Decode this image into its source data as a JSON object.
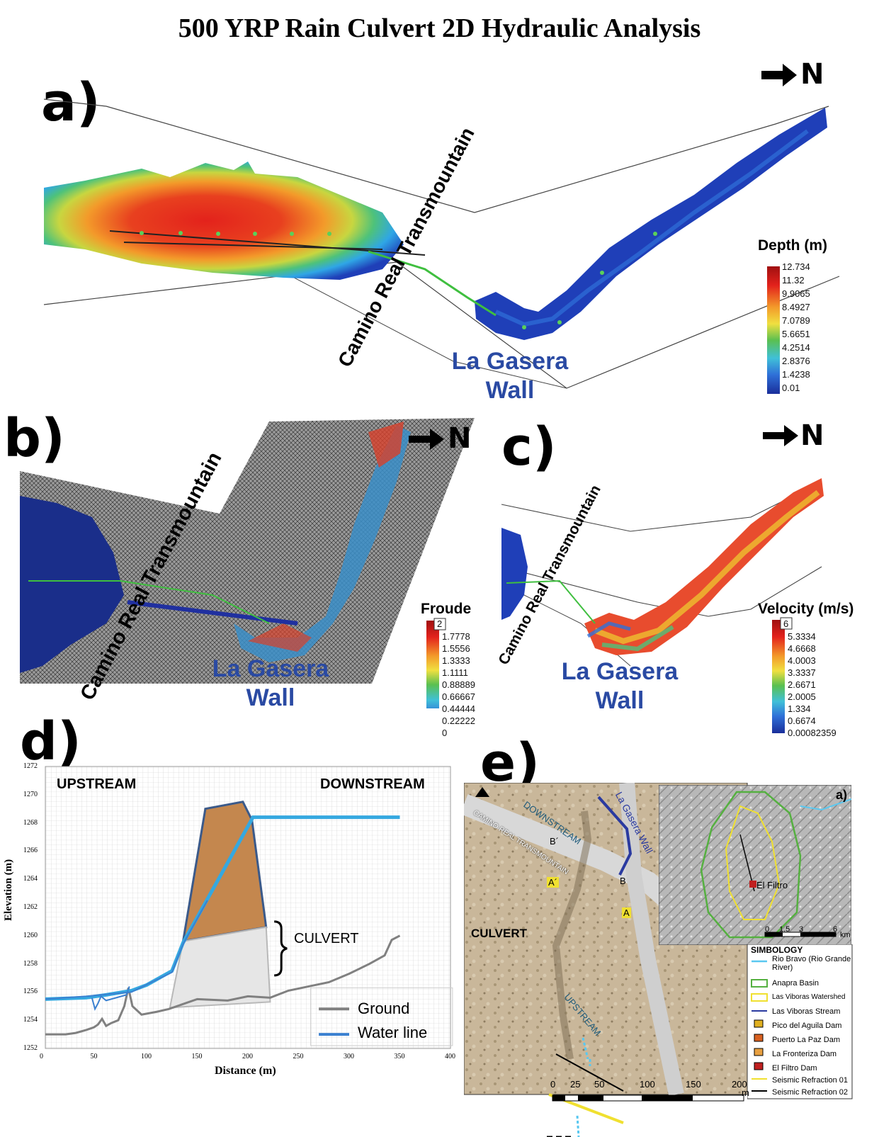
{
  "title": "500 YRP Rain Culvert 2D Hydraulic Analysis",
  "panels": {
    "a": {
      "label": "a)",
      "legend_title": "Depth (m)",
      "ticks": [
        "12.734",
        "11.32",
        "9.9065",
        "8.4927",
        "7.0789",
        "5.6651",
        "4.2514",
        "2.8376",
        "1.4238",
        "0.01"
      ],
      "road": "Camino Real Transmountain",
      "wall1": "La Gasera",
      "wall2": "Wall",
      "north": "N"
    },
    "b": {
      "label": "b)",
      "legend_title": "Froude",
      "max_box": "2",
      "ticks": [
        "1.7778",
        "1.5556",
        "1.3333",
        "1.1111",
        "0.88889",
        "0.66667",
        "0.44444",
        "0.22222",
        "0"
      ],
      "road": "Camino Real Transmountain",
      "wall1": "La Gasera",
      "wall2": "Wall",
      "north": "N"
    },
    "c": {
      "label": "c)",
      "legend_title": "Velocity (m/s)",
      "max_box": "6",
      "ticks": [
        "5.3334",
        "4.6668",
        "4.0003",
        "3.3337",
        "2.6671",
        "2.0005",
        "1.334",
        "0.6674",
        "0.00082359"
      ],
      "road": "Camino Real Transmountain",
      "wall1": "La Gasera",
      "wall2": "Wall",
      "north": "N"
    },
    "d": {
      "label": "d)",
      "upstream": "UPSTREAM",
      "downstream": "DOWNSTREAM",
      "culvert": "CULVERT",
      "ylabel": "Elevation (m)",
      "xlabel": "Distance (m)",
      "yticks": [
        "1272",
        "1270",
        "1268",
        "1266",
        "1264",
        "1262",
        "1260",
        "1258",
        "1256",
        "1254",
        "1252"
      ],
      "xticks": [
        "0",
        "50",
        "100",
        "150",
        "200",
        "250",
        "300",
        "350",
        "400"
      ],
      "legend": [
        "Ground",
        "Water line"
      ]
    },
    "e": {
      "label": "e)",
      "downstream": "DOWNSTREAM",
      "wall": "La Gasera Wall",
      "road": "CAMINO REAL TRANSMOUNTAIN",
      "culvert": "CULVERT",
      "upstream": "UPSTREAM",
      "points": [
        "B´",
        "B",
        "A´",
        "A"
      ],
      "inset_label": "a)",
      "el_filtro": "El Filtro",
      "inset_scale": [
        "0",
        "1.5",
        "3",
        "6",
        "km"
      ],
      "scale": [
        "0",
        "25",
        "50",
        "100",
        "150",
        "200",
        "m"
      ],
      "simbology_title": "SIMBOLOGY",
      "simbology": [
        "Rio Bravo (Rio Grande River)",
        "Anapra Basin",
        "Las Viboras Watershed",
        "Las Viboras Stream",
        "Pico del Aguila Dam",
        "Puerto La Paz Dam",
        "La Fronteriza Dam",
        "El Filtro Dam",
        "Seismic Refraction 01",
        "Seismic Refraction 02"
      ]
    }
  },
  "colors": {
    "ground": "#808080",
    "water": "#35a8e0",
    "wall_text": "#2a4aa3"
  }
}
